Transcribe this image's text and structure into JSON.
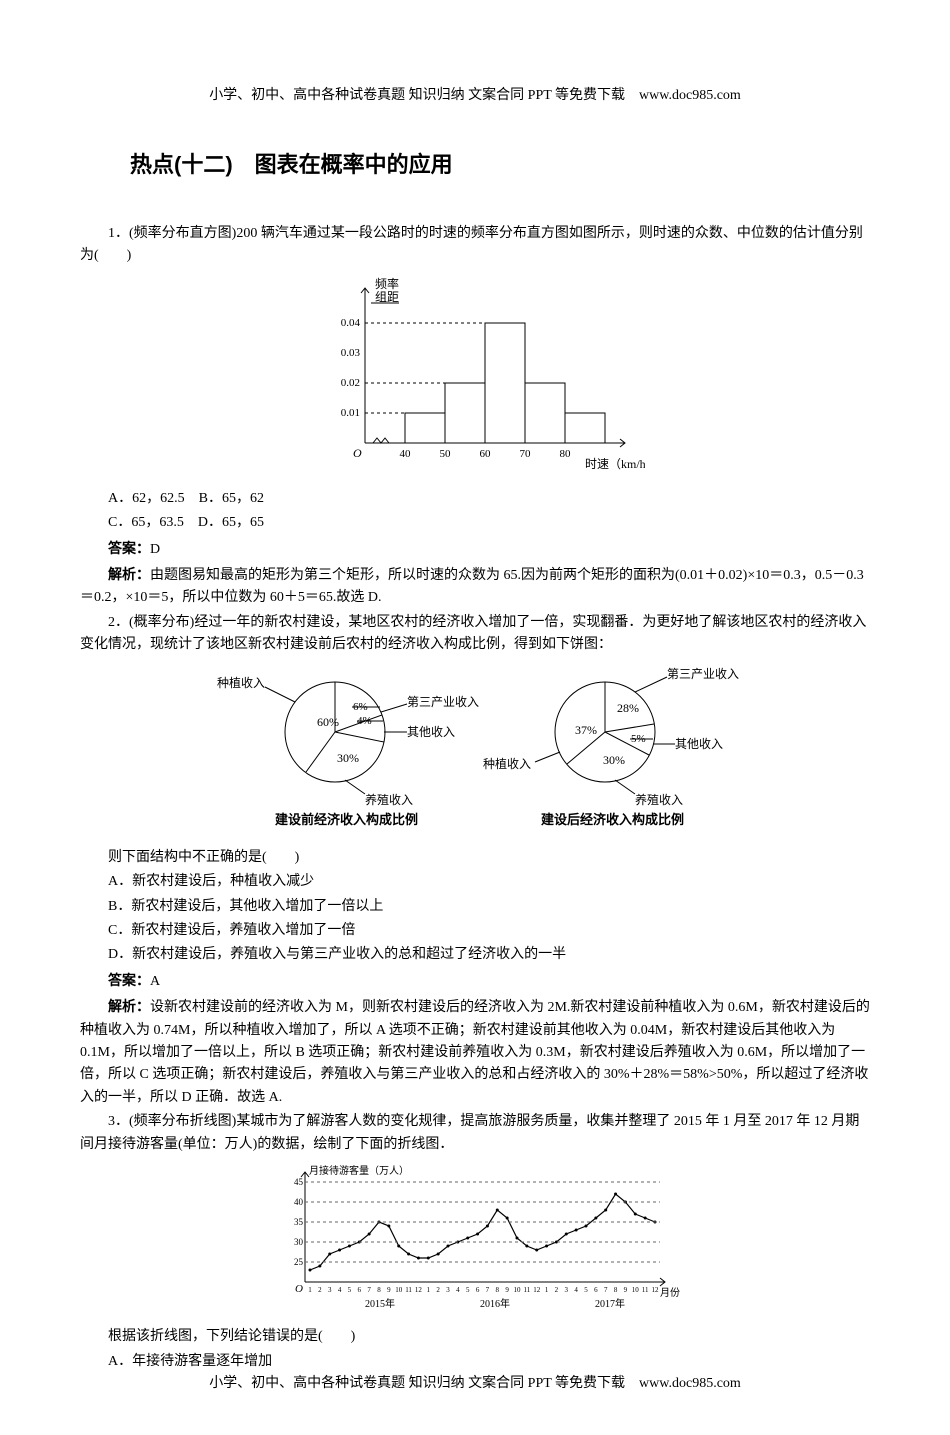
{
  "header_text": "小学、初中、高中各种试卷真题 知识归纳 文案合同 PPT 等免费下载　www.doc985.com",
  "footer_text": "小学、初中、高中各种试卷真题 知识归纳 文案合同 PPT 等免费下载　www.doc985.com",
  "title": "热点(十二)　图表在概率中的应用",
  "q1": {
    "stem": "1．(频率分布直方图)200 辆汽车通过某一段公路时的时速的频率分布直方图如图所示，则时速的众数、中位数的估计值分别为(　　)",
    "opts_line1": "A．62，62.5　B．65，62",
    "opts_line2": "C．65，63.5　D．65，65",
    "answer_label": "答案：",
    "answer": "D",
    "explain_label": "解析：",
    "explain": "由题图易知最高的矩形为第三个矩形，所以时速的众数为 65.因为前两个矩形的面积为(0.01＋0.02)×10＝0.3，0.5－0.3＝0.2，×10＝5，所以中位数为 60＋5＝65.故选 D.",
    "hist": {
      "y_label_top": "频率",
      "y_label_bottom": "组距",
      "y_ticks": [
        "0.01",
        "0.02",
        "0.03",
        "0.04"
      ],
      "x_ticks": [
        "40",
        "50",
        "60",
        "70",
        "80"
      ],
      "x_axis_label": "时速（km/h）",
      "origin": "O",
      "bars": [
        0.01,
        0.02,
        0.04,
        0.02,
        0.01
      ],
      "bar_fill": "#ffffff",
      "axis_color": "#000000",
      "dash_color": "#000000"
    }
  },
  "q2": {
    "stem": "2．(概率分布)经过一年的新农村建设，某地区农村的经济收入增加了一倍，实现翻番．为更好地了解该地区农村的经济收入变化情况，现统计了该地区新农村建设前后农村的经济收入构成比例，得到如下饼图：",
    "pie_left": {
      "title": "建设前经济收入构成比例",
      "labels": {
        "plant": "种植收入",
        "third": "第三产业收入",
        "other": "其他收入",
        "breed": "养殖收入"
      },
      "values": {
        "plant": "60%",
        "third": "6%",
        "other": "4%",
        "breed": "30%"
      }
    },
    "pie_right": {
      "title": "建设后经济收入构成比例",
      "labels": {
        "plant": "种植收入",
        "third": "第三产业收入",
        "other": "其他收入",
        "breed": "养殖收入"
      },
      "values": {
        "plant": "37%",
        "third": "28%",
        "other": "5%",
        "breed": "30%"
      }
    },
    "after_chart": "则下面结构中不正确的是(　　)",
    "optA": "A．新农村建设后，种植收入减少",
    "optB": "B．新农村建设后，其他收入增加了一倍以上",
    "optC": "C．新农村建设后，养殖收入增加了一倍",
    "optD": "D．新农村建设后，养殖收入与第三产业收入的总和超过了经济收入的一半",
    "answer_label": "答案：",
    "answer": "A",
    "explain_label": "解析：",
    "explain": "设新农村建设前的经济收入为 M，则新农村建设后的经济收入为 2M.新农村建设前种植收入为 0.6M，新农村建设后的种植收入为 0.74M，所以种植收入增加了，所以 A 选项不正确；新农村建设前其他收入为 0.04M，新农村建设后其他收入为 0.1M，所以增加了一倍以上，所以 B 选项正确；新农村建设前养殖收入为 0.3M，新农村建设后养殖收入为 0.6M，所以增加了一倍，所以 C 选项正确；新农村建设后，养殖收入与第三产业收入的总和占经济收入的 30%＋28%＝58%>50%，所以超过了经济收入的一半，所以 D 正确．故选 A."
  },
  "q3": {
    "stem": "3．(频率分布折线图)某城市为了解游客人数的变化规律，提高旅游服务质量，收集并整理了 2015 年 1 月至 2017 年 12 月期间月接待游客量(单位：万人)的数据，绘制了下面的折线图．",
    "line_chart": {
      "y_label": "月接待游客量（万人）",
      "y_ticks": [
        "25",
        "30",
        "35",
        "40",
        "45"
      ],
      "x_ticks": [
        "1",
        "2",
        "3",
        "4",
        "5",
        "6",
        "7",
        "8",
        "9",
        "10",
        "11",
        "12",
        "1",
        "2",
        "3",
        "4",
        "5",
        "6",
        "7",
        "8",
        "9",
        "10",
        "11",
        "12",
        "1",
        "2",
        "3",
        "4",
        "5",
        "6",
        "7",
        "8",
        "9",
        "10",
        "11",
        "12"
      ],
      "x_year1": "2015年",
      "x_year2": "2016年",
      "x_year3": "2017年",
      "x_unit": "月份",
      "origin": "O",
      "points": [
        23,
        24,
        27,
        28,
        29,
        30,
        32,
        35,
        34,
        29,
        27,
        26,
        26,
        27,
        29,
        30,
        31,
        32,
        34,
        38,
        36,
        31,
        29,
        28,
        29,
        30,
        32,
        33,
        34,
        36,
        38,
        42,
        40,
        37,
        36,
        35
      ],
      "line_color": "#000000",
      "grid_color": "#666666"
    },
    "after_chart": "根据该折线图，下列结论错误的是(　　)",
    "optA": "A．年接待游客量逐年增加"
  }
}
